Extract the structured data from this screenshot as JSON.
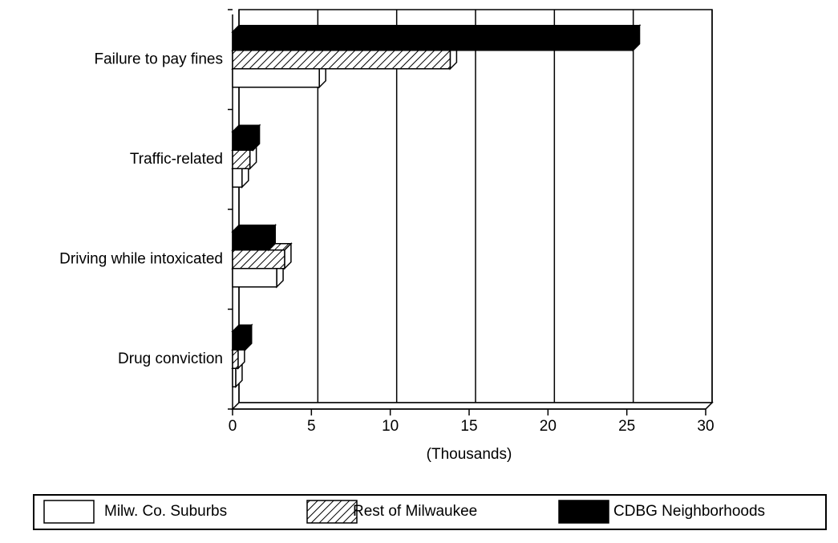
{
  "chart_data": {
    "type": "barh",
    "categories": [
      "Failure to pay fines",
      "Traffic-related",
      "Driving while intoxicated",
      "Drug conviction"
    ],
    "series": [
      {
        "name": "Milw. Co. Suburbs",
        "color": "#ffffff",
        "pattern": "solid",
        "values": [
          5.5,
          0.6,
          2.8,
          0.2
        ]
      },
      {
        "name": "Rest of Milwaukee",
        "color": "#ffffff",
        "pattern": "hatch",
        "values": [
          13.8,
          1.1,
          3.3,
          0.35
        ]
      },
      {
        "name": "CDBG Neighborhoods",
        "color": "#000000",
        "pattern": "solid",
        "values": [
          25.4,
          1.3,
          2.3,
          0.8
        ]
      }
    ],
    "xlabel": "(Thousands)",
    "xlim": [
      0,
      30
    ],
    "xticks": [
      0,
      5,
      10,
      15,
      20,
      25,
      30
    ],
    "grid": true,
    "legend": "bottom"
  }
}
